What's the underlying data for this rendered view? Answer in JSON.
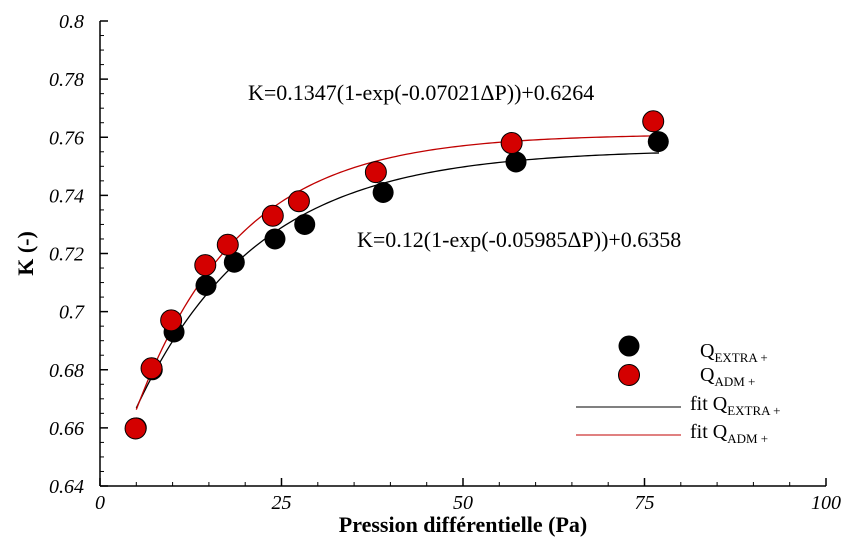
{
  "chart_data": {
    "type": "scatter",
    "xlabel": "Pression différentielle (Pa)",
    "ylabel": "K (-)",
    "xlim": [
      0,
      100
    ],
    "ylim": [
      0.64,
      0.8
    ],
    "x_ticks": [
      0,
      25,
      50,
      75,
      100
    ],
    "x_tick_labels": [
      "0",
      "25",
      "50",
      "75",
      "100"
    ],
    "y_ticks": [
      0.64,
      0.66,
      0.68,
      0.7,
      0.72,
      0.74,
      0.76,
      0.78,
      0.8
    ],
    "y_tick_labels": [
      "0.64",
      "0.66",
      "0.68",
      "0.7",
      "0.72",
      "0.74",
      "0.76",
      "0.78",
      "0.8"
    ],
    "grid": false,
    "legend_position": "right",
    "series": [
      {
        "name": "Q",
        "subscript": "EXTRA +",
        "kind": "points",
        "color": "#000000",
        "x": [
          5,
          7.2,
          10.2,
          14.6,
          18.5,
          24.1,
          28.2,
          39,
          57.3,
          76.9
        ],
        "y": [
          0.66,
          0.68,
          0.693,
          0.709,
          0.717,
          0.725,
          0.73,
          0.741,
          0.7515,
          0.7585
        ]
      },
      {
        "name": "Q",
        "subscript": "ADM +",
        "kind": "points",
        "color": "#d40000",
        "x": [
          4.9,
          7.1,
          9.8,
          14.5,
          17.6,
          23.8,
          27.4,
          38,
          56.7,
          76.2
        ],
        "y": [
          0.6598,
          0.6805,
          0.697,
          0.716,
          0.723,
          0.733,
          0.738,
          0.748,
          0.758,
          0.7655
        ]
      },
      {
        "name": "fit Q",
        "subscript": "EXTRA +",
        "kind": "fit",
        "color": "#000000",
        "a": 0.12,
        "b": 0.05985,
        "c": 0.6358,
        "x_range": [
          5,
          77
        ]
      },
      {
        "name": "fit Q",
        "subscript": "ADM +",
        "kind": "fit",
        "color": "#c00000",
        "a": 0.1347,
        "b": 0.07021,
        "c": 0.6264,
        "x_range": [
          5,
          76.5
        ]
      }
    ],
    "annotations": [
      "K=0.1347(1-exp(-0.07021ΔP))+0.6264",
      "K=0.12(1-exp(-0.05985ΔP))+0.6358"
    ]
  }
}
